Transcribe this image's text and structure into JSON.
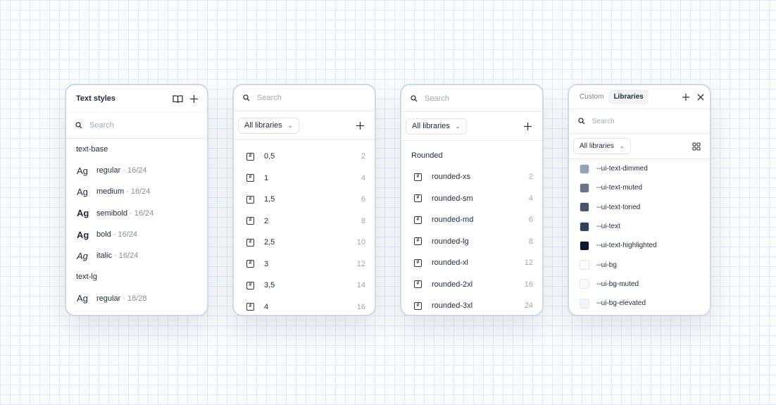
{
  "text_styles": {
    "title": "Text styles",
    "search_placeholder": "Search",
    "groups": [
      {
        "name": "text-base",
        "items": [
          {
            "sample": "Ag",
            "weight": "regular",
            "meta": "· 16/24"
          },
          {
            "sample": "Ag",
            "weight": "medium",
            "meta": "· 16/24"
          },
          {
            "sample": "Ag",
            "weight": "semibold",
            "meta": "· 16/24"
          },
          {
            "sample": "Ag",
            "weight": "bold",
            "meta": "· 16/24"
          },
          {
            "sample": "Ag",
            "weight": "italic",
            "meta": "· 16/24"
          }
        ]
      },
      {
        "name": "text-lg",
        "items": [
          {
            "sample": "Ag",
            "weight": "regular",
            "meta": "· 18/28"
          }
        ]
      }
    ]
  },
  "spacing": {
    "search_placeholder": "Search",
    "filter": "All libraries",
    "items": [
      {
        "name": "0,5",
        "value": "2"
      },
      {
        "name": "1",
        "value": "4"
      },
      {
        "name": "1,5",
        "value": "6"
      },
      {
        "name": "2",
        "value": "8"
      },
      {
        "name": "2,5",
        "value": "10"
      },
      {
        "name": "3",
        "value": "12"
      },
      {
        "name": "3,5",
        "value": "14"
      },
      {
        "name": "4",
        "value": "16"
      }
    ]
  },
  "radius": {
    "search_placeholder": "Search",
    "filter": "All libraries",
    "group": "Rounded",
    "items": [
      {
        "name": "rounded-xs",
        "value": "2"
      },
      {
        "name": "rounded-sm",
        "value": "4"
      },
      {
        "name": "rounded-md",
        "value": "6"
      },
      {
        "name": "rounded-lg",
        "value": "8"
      },
      {
        "name": "rounded-xl",
        "value": "12"
      },
      {
        "name": "rounded-2xl",
        "value": "16"
      },
      {
        "name": "rounded-3xl",
        "value": "24"
      }
    ]
  },
  "colors": {
    "tabs": [
      "Custom",
      "Libraries"
    ],
    "active_tab": "Libraries",
    "search_placeholder": "Search",
    "filter": "All libraries",
    "items": [
      {
        "name": "--ui-text-dimmed",
        "color": "#94a3b8"
      },
      {
        "name": "--ui-text-muted",
        "color": "#64748b"
      },
      {
        "name": "--ui-text-toned",
        "color": "#475569"
      },
      {
        "name": "--ui-text",
        "color": "#334155"
      },
      {
        "name": "--ui-text-highlighted",
        "color": "#0f172a"
      },
      {
        "name": "--ui-bg",
        "color": "#ffffff"
      },
      {
        "name": "--ui-bg-muted",
        "color": "#f8fafc"
      },
      {
        "name": "--ui-bg-elevated",
        "color": "#f1f5f9"
      }
    ]
  }
}
